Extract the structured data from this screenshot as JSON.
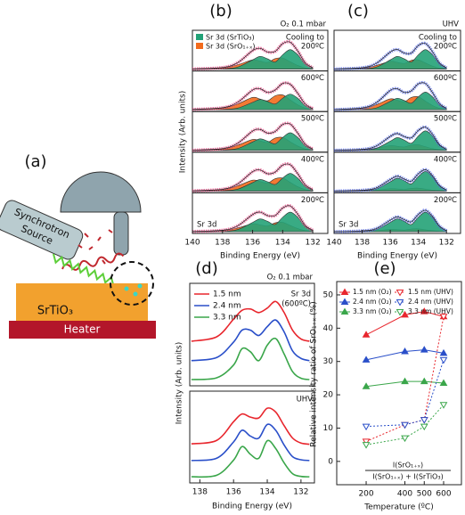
{
  "schematic": {
    "panel": "(a)",
    "source": [
      "Synchrotron",
      "Source"
    ],
    "sample": "SrTiO₃",
    "heater": "Heater"
  },
  "chart_data": [
    {
      "type": "stacked-spectra",
      "panel": "(b)",
      "condition": "O₂ 0.1 mbar",
      "xlabel": "Binding Energy (eV)",
      "ylabel": "Intensity (Arb. units)",
      "core_label": "Sr 3d",
      "x": [
        140,
        138,
        137,
        136,
        135.5,
        135,
        134.5,
        134,
        133.5,
        133,
        132.5,
        132
      ],
      "xlim": [
        140,
        131
      ],
      "xticks": [
        140,
        138,
        136,
        134,
        132
      ],
      "ylim": [
        0,
        1.8
      ],
      "legend": [
        {
          "name": "Sr 3d (SrTiO₃)",
          "color": "#23a277"
        },
        {
          "name": "Sr 3d (SrO₁₊ₓ)",
          "color": "#f26b1d"
        }
      ],
      "envelope_color": "#e8508a",
      "stacks": [
        {
          "label": [
            "Cooling to",
            "200ºC"
          ],
          "components": [
            [
              0,
              0.02,
              0.1,
              0.45,
              0.62,
              0.5,
              0.35,
              0.7,
              0.95,
              0.7,
              0.25,
              0.05
            ],
            [
              0.01,
              0.06,
              0.21,
              0.45,
              0.39,
              0.33,
              0.51,
              0.54,
              0.36,
              0.18,
              0.06,
              0.02
            ]
          ]
        },
        {
          "label": [
            "600ºC"
          ],
          "components": [
            [
              0,
              0.02,
              0.08,
              0.36,
              0.5,
              0.4,
              0.28,
              0.56,
              0.76,
              0.56,
              0.2,
              0.04
            ],
            [
              0.02,
              0.08,
              0.28,
              0.6,
              0.52,
              0.44,
              0.68,
              0.72,
              0.48,
              0.24,
              0.08,
              0.02
            ]
          ]
        },
        {
          "label": [
            "500ºC"
          ],
          "components": [
            [
              0,
              0.02,
              0.09,
              0.41,
              0.56,
              0.45,
              0.32,
              0.63,
              0.86,
              0.63,
              0.23,
              0.05
            ],
            [
              0.01,
              0.07,
              0.25,
              0.53,
              0.46,
              0.39,
              0.6,
              0.63,
              0.42,
              0.21,
              0.07,
              0.02
            ]
          ]
        },
        {
          "label": [
            "400ºC"
          ],
          "components": [
            [
              0,
              0.02,
              0.09,
              0.41,
              0.56,
              0.45,
              0.32,
              0.63,
              0.86,
              0.63,
              0.23,
              0.05
            ],
            [
              0.01,
              0.07,
              0.25,
              0.53,
              0.46,
              0.39,
              0.6,
              0.63,
              0.42,
              0.21,
              0.07,
              0.02
            ]
          ]
        },
        {
          "label": [
            "200ºC"
          ],
          "components": [
            [
              0,
              0.02,
              0.1,
              0.45,
              0.62,
              0.5,
              0.35,
              0.7,
              0.95,
              0.7,
              0.25,
              0.05
            ],
            [
              0.01,
              0.05,
              0.18,
              0.38,
              0.33,
              0.28,
              0.43,
              0.45,
              0.3,
              0.15,
              0.05,
              0.02
            ]
          ]
        }
      ]
    },
    {
      "type": "stacked-spectra",
      "panel": "(c)",
      "condition": "UHV",
      "xlabel": "Binding Energy (eV)",
      "core_label": "Sr 3d",
      "x": [
        140,
        138,
        137,
        136,
        135.5,
        135,
        134.5,
        134,
        133.5,
        133,
        132.5,
        132
      ],
      "xlim": [
        140,
        131
      ],
      "xticks": [
        140,
        138,
        136,
        134,
        132
      ],
      "ylim": [
        0,
        1.8
      ],
      "colors": [
        "#23a277",
        "#f26b1d"
      ],
      "envelope_color": "#5a6ee8",
      "stacks": [
        {
          "label": [
            "Cooling to",
            "200ºC"
          ],
          "components": [
            [
              0,
              0.02,
              0.1,
              0.45,
              0.62,
              0.5,
              0.35,
              0.7,
              0.95,
              0.7,
              0.25,
              0.05
            ],
            [
              0.01,
              0.05,
              0.18,
              0.38,
              0.33,
              0.28,
              0.43,
              0.45,
              0.3,
              0.15,
              0.05,
              0.02
            ]
          ]
        },
        {
          "label": [
            "600ºC"
          ],
          "components": [
            [
              0,
              0.02,
              0.09,
              0.41,
              0.56,
              0.45,
              0.32,
              0.63,
              0.86,
              0.63,
              0.23,
              0.05
            ],
            [
              0.01,
              0.07,
              0.25,
              0.53,
              0.46,
              0.39,
              0.6,
              0.63,
              0.42,
              0.21,
              0.07,
              0.02
            ]
          ]
        },
        {
          "label": [
            "500ºC"
          ],
          "components": [
            [
              0,
              0.02,
              0.1,
              0.45,
              0.62,
              0.5,
              0.35,
              0.7,
              0.95,
              0.7,
              0.25,
              0.05
            ],
            [
              0.01,
              0.03,
              0.11,
              0.23,
              0.2,
              0.17,
              0.26,
              0.27,
              0.18,
              0.09,
              0.03,
              0.01
            ]
          ]
        },
        {
          "label": [
            "400ºC"
          ],
          "components": [
            [
              0,
              0.02,
              0.1,
              0.45,
              0.62,
              0.5,
              0.35,
              0.7,
              0.95,
              0.7,
              0.25,
              0.05
            ],
            [
              0,
              0.02,
              0.05,
              0.11,
              0.1,
              0.08,
              0.13,
              0.14,
              0.09,
              0.05,
              0.02,
              0
            ]
          ]
        },
        {
          "label": [
            "200ºC"
          ],
          "components": [
            [
              0,
              0.02,
              0.1,
              0.45,
              0.62,
              0.5,
              0.35,
              0.7,
              0.95,
              0.7,
              0.25,
              0.05
            ],
            [
              0,
              0.02,
              0.05,
              0.11,
              0.1,
              0.08,
              0.13,
              0.14,
              0.09,
              0.05,
              0.02,
              0
            ]
          ]
        }
      ]
    },
    {
      "type": "offset-spectra",
      "panel": "(d)",
      "xlabel": "Binding Energy (eV)",
      "ylabel": "Intensity (Arb. units)",
      "x": [
        138.5,
        137,
        136,
        135.5,
        135,
        134.5,
        134,
        133.5,
        133,
        132.5,
        132,
        131.5
      ],
      "xlim": [
        138.6,
        131.2
      ],
      "xticks": [
        138,
        136,
        134,
        132
      ],
      "series": [
        {
          "name": "1.5 nm",
          "color": "#e8262d"
        },
        {
          "name": "2.4 nm",
          "color": "#2a4fc9"
        },
        {
          "name": "3.3 nm",
          "color": "#3aa64a"
        }
      ],
      "subplots": [
        {
          "condition": "O₂ 0.1 mbar",
          "note": [
            "Sr 3d",
            "(600ºC)"
          ],
          "values": [
            [
              0.05,
              0.15,
              0.55,
              0.75,
              0.78,
              0.7,
              0.8,
              0.95,
              0.7,
              0.3,
              0.1,
              0.05
            ],
            [
              0.03,
              0.1,
              0.45,
              0.72,
              0.72,
              0.6,
              0.8,
              0.95,
              0.68,
              0.25,
              0.08,
              0.03
            ],
            [
              0.02,
              0.06,
              0.35,
              0.72,
              0.65,
              0.45,
              0.8,
              0.95,
              0.6,
              0.2,
              0.05,
              0.02
            ]
          ]
        },
        {
          "condition": "UHV",
          "values": [
            [
              0.03,
              0.12,
              0.6,
              0.8,
              0.72,
              0.7,
              0.95,
              0.85,
              0.5,
              0.18,
              0.05,
              0.02
            ],
            [
              0.02,
              0.08,
              0.5,
              0.8,
              0.65,
              0.6,
              0.95,
              0.8,
              0.42,
              0.12,
              0.04,
              0.02
            ],
            [
              0.02,
              0.06,
              0.45,
              0.8,
              0.6,
              0.5,
              0.95,
              0.75,
              0.38,
              0.1,
              0.03,
              0.02
            ]
          ]
        }
      ]
    },
    {
      "type": "line",
      "panel": "(e)",
      "xlabel": "Temperature (ºC)",
      "ylabel": "Relative intensity ratio of SrO₁₊ₓ (%)",
      "formula": {
        "numerator": "I(SrO₁₊ₓ)",
        "denominator": "I(SrO₁₊ₓ) + I(SrTiO₃)"
      },
      "x": [
        200,
        400,
        500,
        600
      ],
      "xlim": [
        48,
        692
      ],
      "xticks": [
        200,
        400,
        500,
        600
      ],
      "ylim": [
        -7,
        54
      ],
      "yticks": [
        0,
        10,
        20,
        30,
        40,
        50
      ],
      "series": [
        {
          "name": "1.5 nm (O₂)",
          "color": "#e8262d",
          "style": "solid",
          "marker": "filled",
          "values": [
            38,
            44,
            45,
            43.5
          ]
        },
        {
          "name": "2.4 nm (O₂)",
          "color": "#2a4fc9",
          "style": "solid",
          "marker": "filled",
          "values": [
            30.5,
            33,
            33.5,
            32.5
          ]
        },
        {
          "name": "3.3 nm (O₂)",
          "color": "#3aa64a",
          "style": "solid",
          "marker": "filled",
          "values": [
            22.5,
            24,
            24,
            23.5
          ]
        },
        {
          "name": "1.5 nm (UHV)",
          "color": "#e8262d",
          "style": "dashed",
          "marker": "open",
          "values": [
            6,
            11,
            12.5,
            43.5
          ]
        },
        {
          "name": "2.4 nm (UHV)",
          "color": "#2a4fc9",
          "style": "dashed",
          "marker": "open",
          "values": [
            10.5,
            11,
            12.5,
            30.5
          ]
        },
        {
          "name": "3.3 nm (UHV)",
          "color": "#3aa64a",
          "style": "dashed",
          "marker": "open",
          "values": [
            5,
            7,
            10.5,
            17
          ]
        }
      ]
    }
  ]
}
